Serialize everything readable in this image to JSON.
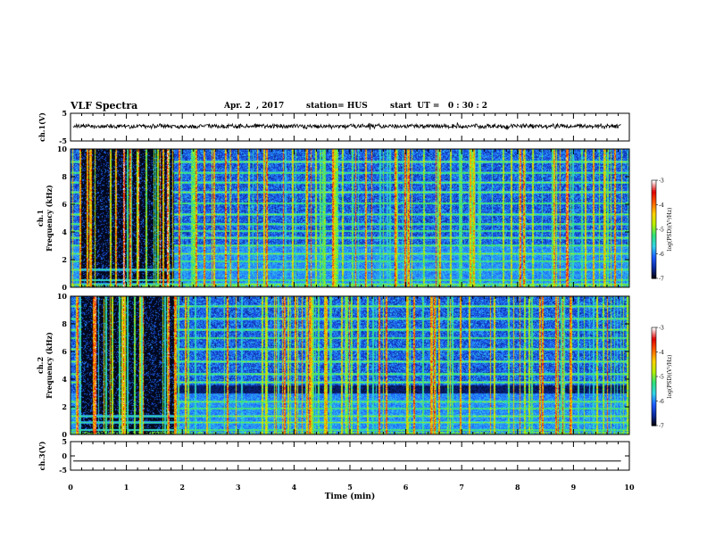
{
  "header": {
    "title": "VLF Spectra",
    "date": "Apr. 2  , 2017",
    "station": "station= HUS",
    "start": "start  UT =   0 : 30 : 2"
  },
  "chart_data": [
    {
      "type": "line",
      "panel": "ch1-waveform",
      "ylabel": "ch.1(V)",
      "yticks": [
        "5",
        "-5"
      ],
      "ylim": [
        -5,
        5
      ],
      "xlim": [
        0,
        10
      ],
      "series": [
        {
          "values_description_level": 0
        }
      ]
    },
    {
      "type": "heatmap",
      "panel": "ch1-spectrogram",
      "ylabel": [
        "ch.1",
        "Frequency (kHz)"
      ],
      "yticks": [
        "0",
        "2",
        "4",
        "6",
        "8",
        "10"
      ],
      "ylim": [
        0,
        10
      ],
      "xlim": [
        0,
        10
      ],
      "colorbar": {
        "label": "log(PSD)(V²/Hz)",
        "ticks": [
          "-3",
          "-4",
          "-5",
          "-6",
          "-7"
        ],
        "range": [
          -7,
          -3
        ]
      }
    },
    {
      "type": "heatmap",
      "panel": "ch2-spectrogram",
      "ylabel": [
        "ch.2",
        "Frequency (kHz)"
      ],
      "yticks": [
        "0",
        "2",
        "4",
        "6",
        "8",
        "10"
      ],
      "ylim": [
        0,
        10
      ],
      "xlim": [
        0,
        10
      ],
      "colorbar": {
        "label": "log(PSD)(V²/Hz)",
        "ticks": [
          "-3",
          "-4",
          "-5",
          "-6",
          "-7"
        ],
        "range": [
          -7,
          -3
        ]
      }
    },
    {
      "type": "line",
      "panel": "ch3-waveform",
      "ylabel": "ch.3(V)",
      "yticks": [
        "5",
        "0",
        "-5"
      ],
      "ylim": [
        -5,
        5
      ],
      "xlim": [
        0,
        10
      ],
      "series": [
        {
          "values": [
            -1.8
          ]
        }
      ]
    }
  ],
  "xaxis": {
    "label": "Time  (min)",
    "ticks": [
      "0",
      "1",
      "2",
      "3",
      "4",
      "5",
      "6",
      "7",
      "8",
      "9",
      "10"
    ],
    "range": [
      0,
      10
    ]
  },
  "colors": {
    "background": "#ffffff",
    "axis": "#000000",
    "colormap": [
      "#000000",
      "#0a2a9a",
      "#1e5bff",
      "#33d3e8",
      "#2fe07a",
      "#b7f000",
      "#ffd000",
      "#ff6000",
      "#e00000",
      "#ffffff"
    ]
  }
}
